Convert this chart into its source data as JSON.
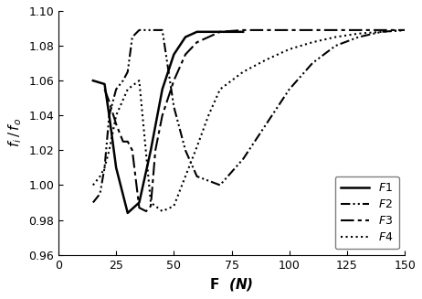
{
  "title": "",
  "xlabel": "$\\mathbf{F}$ (N)",
  "ylabel": "$f_i\\,/\\,f_o$",
  "xlim": [
    0,
    150
  ],
  "ylim": [
    0.96,
    1.1
  ],
  "yticks": [
    0.96,
    0.98,
    1.0,
    1.02,
    1.04,
    1.06,
    1.08,
    1.1
  ],
  "xticks": [
    0,
    25,
    50,
    75,
    100,
    125,
    150
  ],
  "F1": {
    "x": [
      15,
      20,
      22,
      25,
      30,
      35,
      40,
      45,
      50,
      55,
      60,
      65,
      70,
      75,
      80
    ],
    "y": [
      1.06,
      1.058,
      1.04,
      1.01,
      0.984,
      0.99,
      1.02,
      1.055,
      1.075,
      1.085,
      1.088,
      1.088,
      1.088,
      1.088,
      1.088
    ],
    "style": "solid",
    "color": "#000000",
    "linewidth": 1.8
  },
  "F2": {
    "x": [
      15,
      18,
      20,
      22,
      25,
      28,
      30,
      32,
      35,
      40,
      45,
      50,
      55,
      60,
      70,
      80,
      90,
      100,
      110,
      120,
      130,
      140,
      150
    ],
    "y": [
      0.99,
      0.995,
      1.01,
      1.04,
      1.055,
      1.06,
      1.065,
      1.085,
      1.089,
      1.089,
      1.089,
      1.045,
      1.02,
      1.005,
      1.0,
      1.015,
      1.035,
      1.055,
      1.07,
      1.08,
      1.085,
      1.088,
      1.089
    ],
    "style": "dashdot",
    "color": "#000000",
    "linewidth": 1.5,
    "dashes": [
      6,
      2,
      1,
      2
    ]
  },
  "F3": {
    "x": [
      20,
      22,
      25,
      28,
      30,
      32,
      35,
      38,
      40,
      42,
      45,
      50,
      55,
      60,
      70,
      80,
      90,
      100,
      110,
      120,
      130,
      140,
      150
    ],
    "y": [
      1.055,
      1.048,
      1.035,
      1.025,
      1.025,
      1.02,
      0.987,
      0.985,
      0.988,
      1.02,
      1.04,
      1.06,
      1.075,
      1.082,
      1.088,
      1.089,
      1.089,
      1.089,
      1.089,
      1.089,
      1.089,
      1.089,
      1.089
    ],
    "style": "dashdot",
    "color": "#000000",
    "linewidth": 1.5,
    "dashes": [
      8,
      2,
      2,
      2
    ]
  },
  "F4": {
    "x": [
      15,
      18,
      20,
      22,
      25,
      30,
      35,
      40,
      45,
      50,
      55,
      60,
      65,
      70,
      80,
      90,
      100,
      110,
      120,
      130,
      140,
      150
    ],
    "y": [
      1.0,
      1.005,
      1.01,
      1.02,
      1.04,
      1.055,
      1.06,
      0.99,
      0.985,
      0.988,
      1.005,
      1.022,
      1.04,
      1.055,
      1.065,
      1.072,
      1.078,
      1.082,
      1.085,
      1.087,
      1.088,
      1.089
    ],
    "style": "dotted",
    "color": "#000000",
    "linewidth": 1.5
  },
  "legend_labels": [
    "F1",
    "F2",
    "F3",
    "F4"
  ],
  "legend_loc": "lower right",
  "background_color": "#ffffff"
}
